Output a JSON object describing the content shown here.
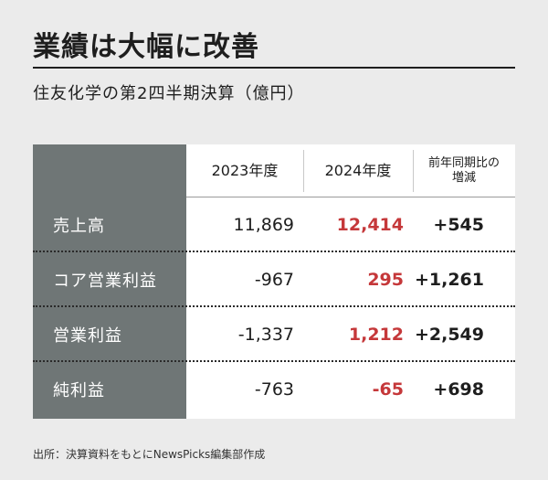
{
  "title": "業績は大幅に改善",
  "subtitle": "住友化学の第2四半期決算（億円）",
  "table": {
    "headers": [
      "2023年度",
      "2024年度",
      "前年同期比の増減"
    ],
    "header_lines_change": [
      "前年同期比の",
      "増減"
    ],
    "rows": [
      {
        "label": "売上高",
        "y2023": "11,869",
        "y2024": "12,414",
        "change": "+545"
      },
      {
        "label": "コア営業利益",
        "y2023": "-967",
        "y2024": "295",
        "change": "+1,261"
      },
      {
        "label": "営業利益",
        "y2023": "-1,337",
        "y2024": "1,212",
        "change": "+2,549"
      },
      {
        "label": "純利益",
        "y2023": "-763",
        "y2024": "-65",
        "change": "+698"
      }
    ]
  },
  "source": "出所：決算資料をもとにNewsPicks編集部作成",
  "colors": {
    "highlight": "#c5383a",
    "label_bg": "#6f7676",
    "page_bg": "#ebebeb"
  }
}
